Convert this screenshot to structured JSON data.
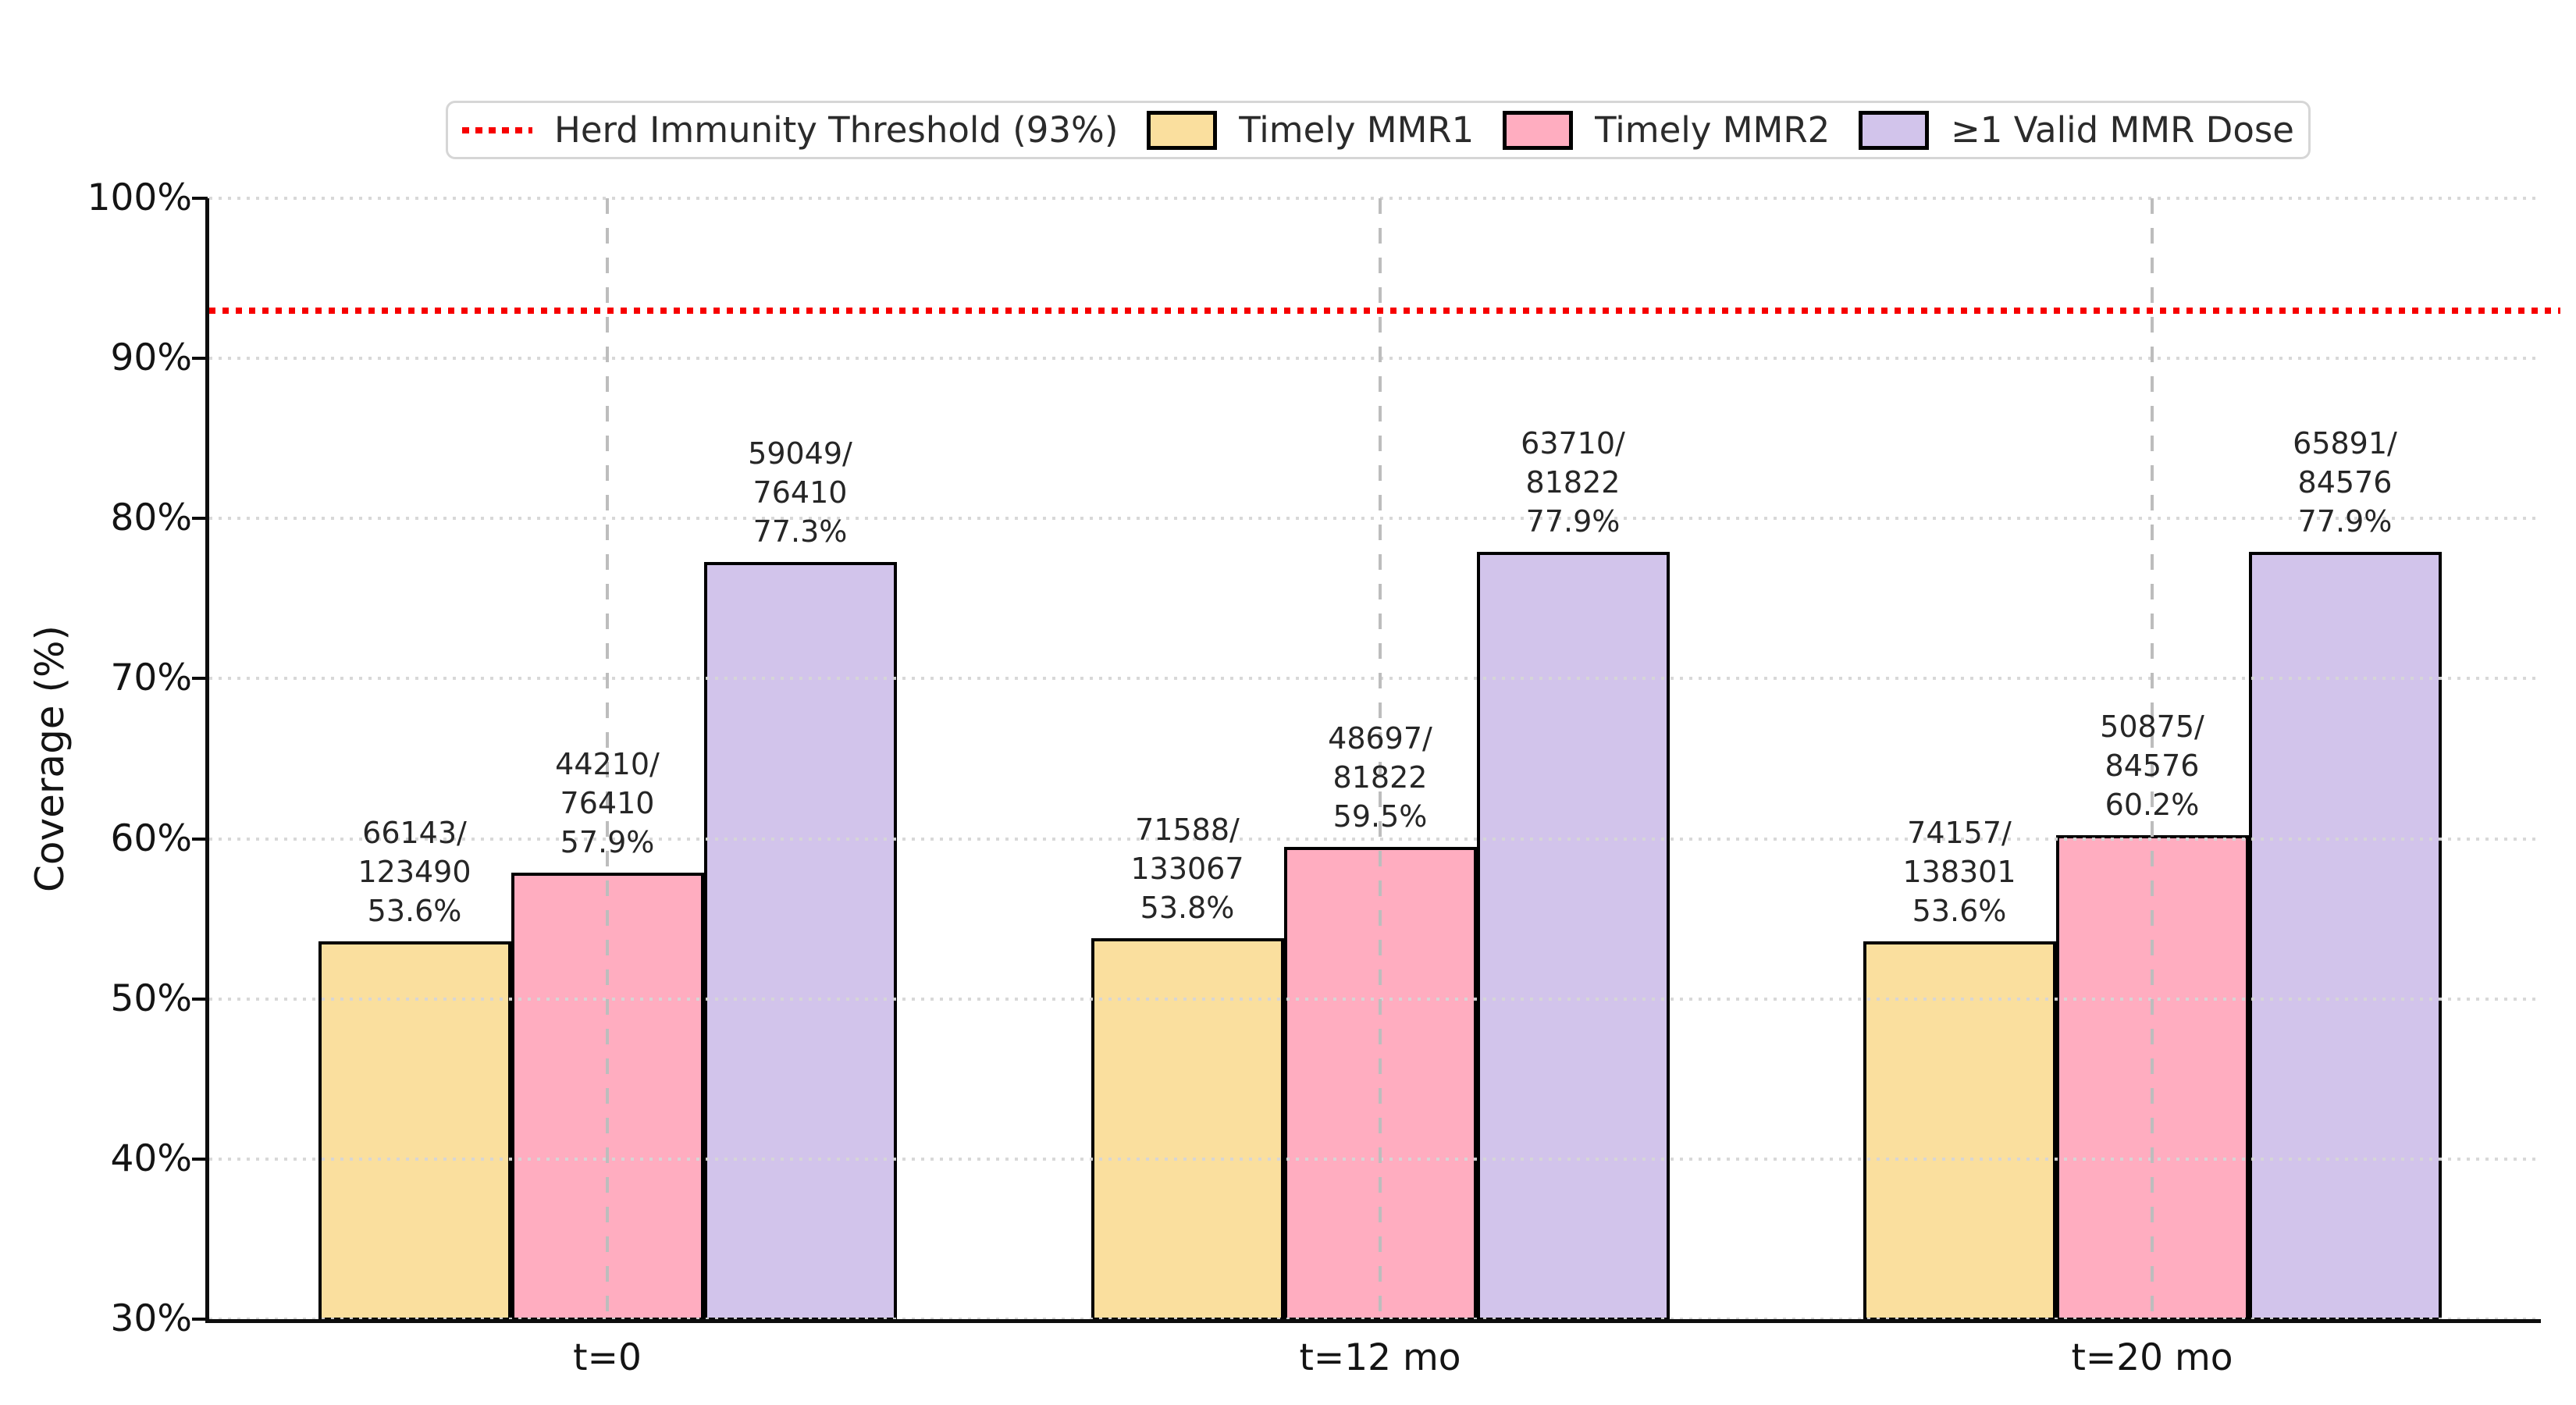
{
  "chart_data": {
    "type": "bar",
    "title": "",
    "xlabel": "",
    "ylabel": "Coverage (%)",
    "categories": [
      "t=0",
      "t=12 mo",
      "t=20 mo"
    ],
    "y_axis": {
      "min": 30,
      "max": 100,
      "tick_step": 10,
      "tick_values": [
        30,
        40,
        50,
        60,
        70,
        80,
        90,
        100
      ],
      "tick_labels": [
        "30%",
        "40%",
        "50%",
        "60%",
        "70%",
        "80%",
        "90%",
        "100%"
      ]
    },
    "grid": {
      "horizontal_style": "dotted",
      "horizontal_color": "#d6d6d6",
      "vertical_group_lines_style": "dashed",
      "vertical_group_lines_color": "#bdbdbd"
    },
    "threshold": {
      "label": "Herd Immunity Threshold (93%)",
      "value": 93,
      "color": "#f70000",
      "style": "dotted"
    },
    "bar_edge_color": "#000000",
    "series": [
      {
        "name": "Timely MMR1",
        "color": "#fadf9e",
        "values": [
          53.6,
          53.8,
          53.6
        ],
        "points": [
          {
            "num": 66143,
            "den": 123490,
            "pct_label": "53.6%"
          },
          {
            "num": 71588,
            "den": 133067,
            "pct_label": "53.8%"
          },
          {
            "num": 74157,
            "den": 138301,
            "pct_label": "53.6%"
          }
        ]
      },
      {
        "name": "Timely MMR2",
        "color": "#ffadc0",
        "values": [
          57.9,
          59.5,
          60.2
        ],
        "points": [
          {
            "num": 44210,
            "den": 76410,
            "pct_label": "57.9%"
          },
          {
            "num": 48697,
            "den": 81822,
            "pct_label": "59.5%"
          },
          {
            "num": 50875,
            "den": 84576,
            "pct_label": "60.2%"
          }
        ]
      },
      {
        "name": "≥1 Valid MMR Dose",
        "color": "#d2c4eb",
        "values": [
          77.3,
          77.9,
          77.9
        ],
        "points": [
          {
            "num": 59049,
            "den": 76410,
            "pct_label": "77.3%"
          },
          {
            "num": 63710,
            "den": 81822,
            "pct_label": "77.9%"
          },
          {
            "num": 65891,
            "den": 84576,
            "pct_label": "77.9%"
          }
        ]
      }
    ],
    "legend_position": "top"
  }
}
